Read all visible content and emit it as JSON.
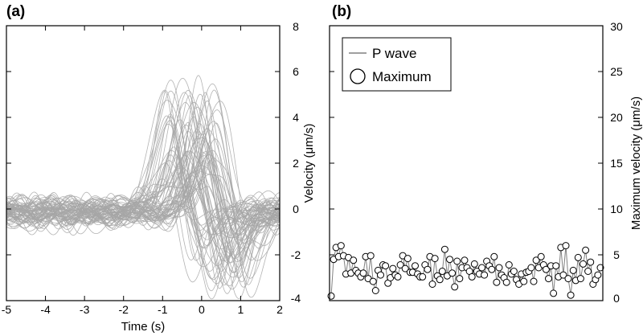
{
  "chart_data": [
    {
      "panel": "(a)",
      "type": "line",
      "title": "",
      "xlabel": "Time (s)",
      "ylabel": "Velocity (μm/s)",
      "ylabel_parts": [
        "Velocity (",
        "μm/s",
        ")"
      ],
      "xlim": [
        -5,
        2
      ],
      "ylim": [
        -4,
        8
      ],
      "x_ticks": [
        -5,
        -4,
        -3,
        -2,
        -1,
        0,
        1,
        2
      ],
      "y_ticks": [
        -4,
        -2,
        0,
        2,
        4,
        6,
        8
      ],
      "y_axis_side": "right",
      "series_color": "#a6a6a6",
      "series_count": 70,
      "series_description_values": {
        "pre_onset_noise_range": [
          -0.6,
          1.2
        ],
        "peak_time_range_s": [
          -1.0,
          0.4
        ],
        "peak_amplitude_range": [
          1.5,
          6.1
        ],
        "post_peak_trough_range": [
          -3.5,
          -0.5
        ]
      }
    },
    {
      "panel": "(b)",
      "type": "scatter",
      "title": "",
      "xlabel": "",
      "ylabel": "Maximum velocity (μm/s)",
      "ylabel_parts": [
        "Maximum velocity (",
        "μm/s",
        ")"
      ],
      "ylim": [
        0,
        30
      ],
      "y_ticks": [
        0,
        5,
        10,
        15,
        20,
        25,
        30
      ],
      "y_axis_side": "right",
      "legend_position": "top-left",
      "legend": [
        "P wave",
        "Maximum"
      ],
      "line_color": "#808080",
      "marker": "open-circle",
      "values": [
        0.5,
        4.5,
        5.8,
        4.8,
        6.0,
        4.9,
        2.9,
        4.7,
        3.0,
        4.4,
        3.3,
        3.0,
        2.6,
        3.0,
        4.8,
        2.4,
        4.9,
        2.1,
        1.1,
        3.3,
        2.8,
        3.9,
        3.8,
        1.9,
        2.5,
        3.5,
        2.8,
        2.6,
        3.9,
        4.9,
        3.5,
        4.6,
        3.1,
        3.1,
        3.8,
        2.9,
        2.6,
        2.6,
        3.9,
        3.4,
        4.8,
        1.8,
        4.6,
        2.7,
        2.3,
        3.2,
        5.6,
        2.7,
        4.5,
        3.0,
        1.5,
        4.3,
        2.4,
        3.6,
        4.4,
        3.6,
        3.2,
        2.6,
        4.0,
        3.2,
        2.9,
        3.6,
        2.8,
        4.3,
        3.8,
        3.4,
        4.8,
        2.0,
        3.6,
        2.8,
        2.5,
        2.0,
        3.9,
        2.9,
        3.2,
        2.3,
        1.8,
        2.9,
        2.1,
        3.1,
        3.2,
        3.6,
        2.1,
        4.4,
        3.6,
        4.8,
        3.9,
        3.4,
        2.4,
        3.8,
        0.8,
        3.8,
        2.6,
        5.8,
        2.8,
        6.0,
        2.4,
        0.6,
        3.3,
        2.2,
        4.7,
        2.4,
        4.0,
        5.5,
        3.2,
        4.2,
        1.8,
        2.3,
        2.8,
        3.6
      ]
    }
  ]
}
